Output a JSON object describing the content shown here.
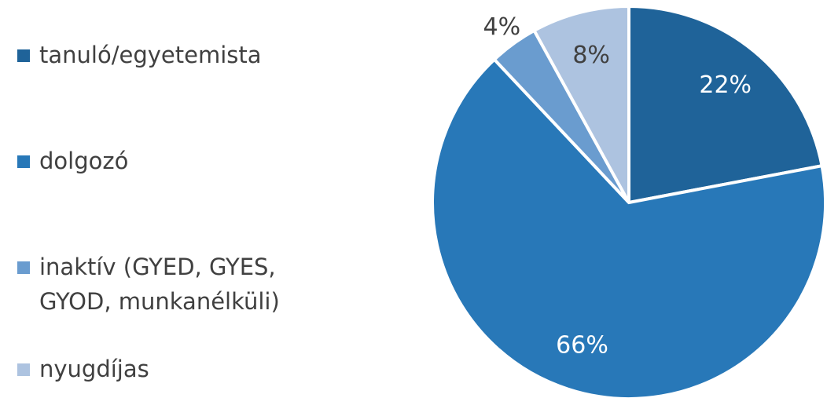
{
  "chart_data": {
    "type": "pie",
    "categories": [
      "tanuló/egyetemista",
      "dolgozó",
      "inaktív (GYED, GYES, GYOD, munkanélküli)",
      "nyugdíjas"
    ],
    "values": [
      22,
      66,
      4,
      8
    ],
    "value_labels": [
      "22%",
      "66%",
      "4%",
      "8%"
    ],
    "colors": [
      "#1f6399",
      "#2878b8",
      "#6a9ccf",
      "#adc3e0"
    ],
    "legend": "left"
  }
}
